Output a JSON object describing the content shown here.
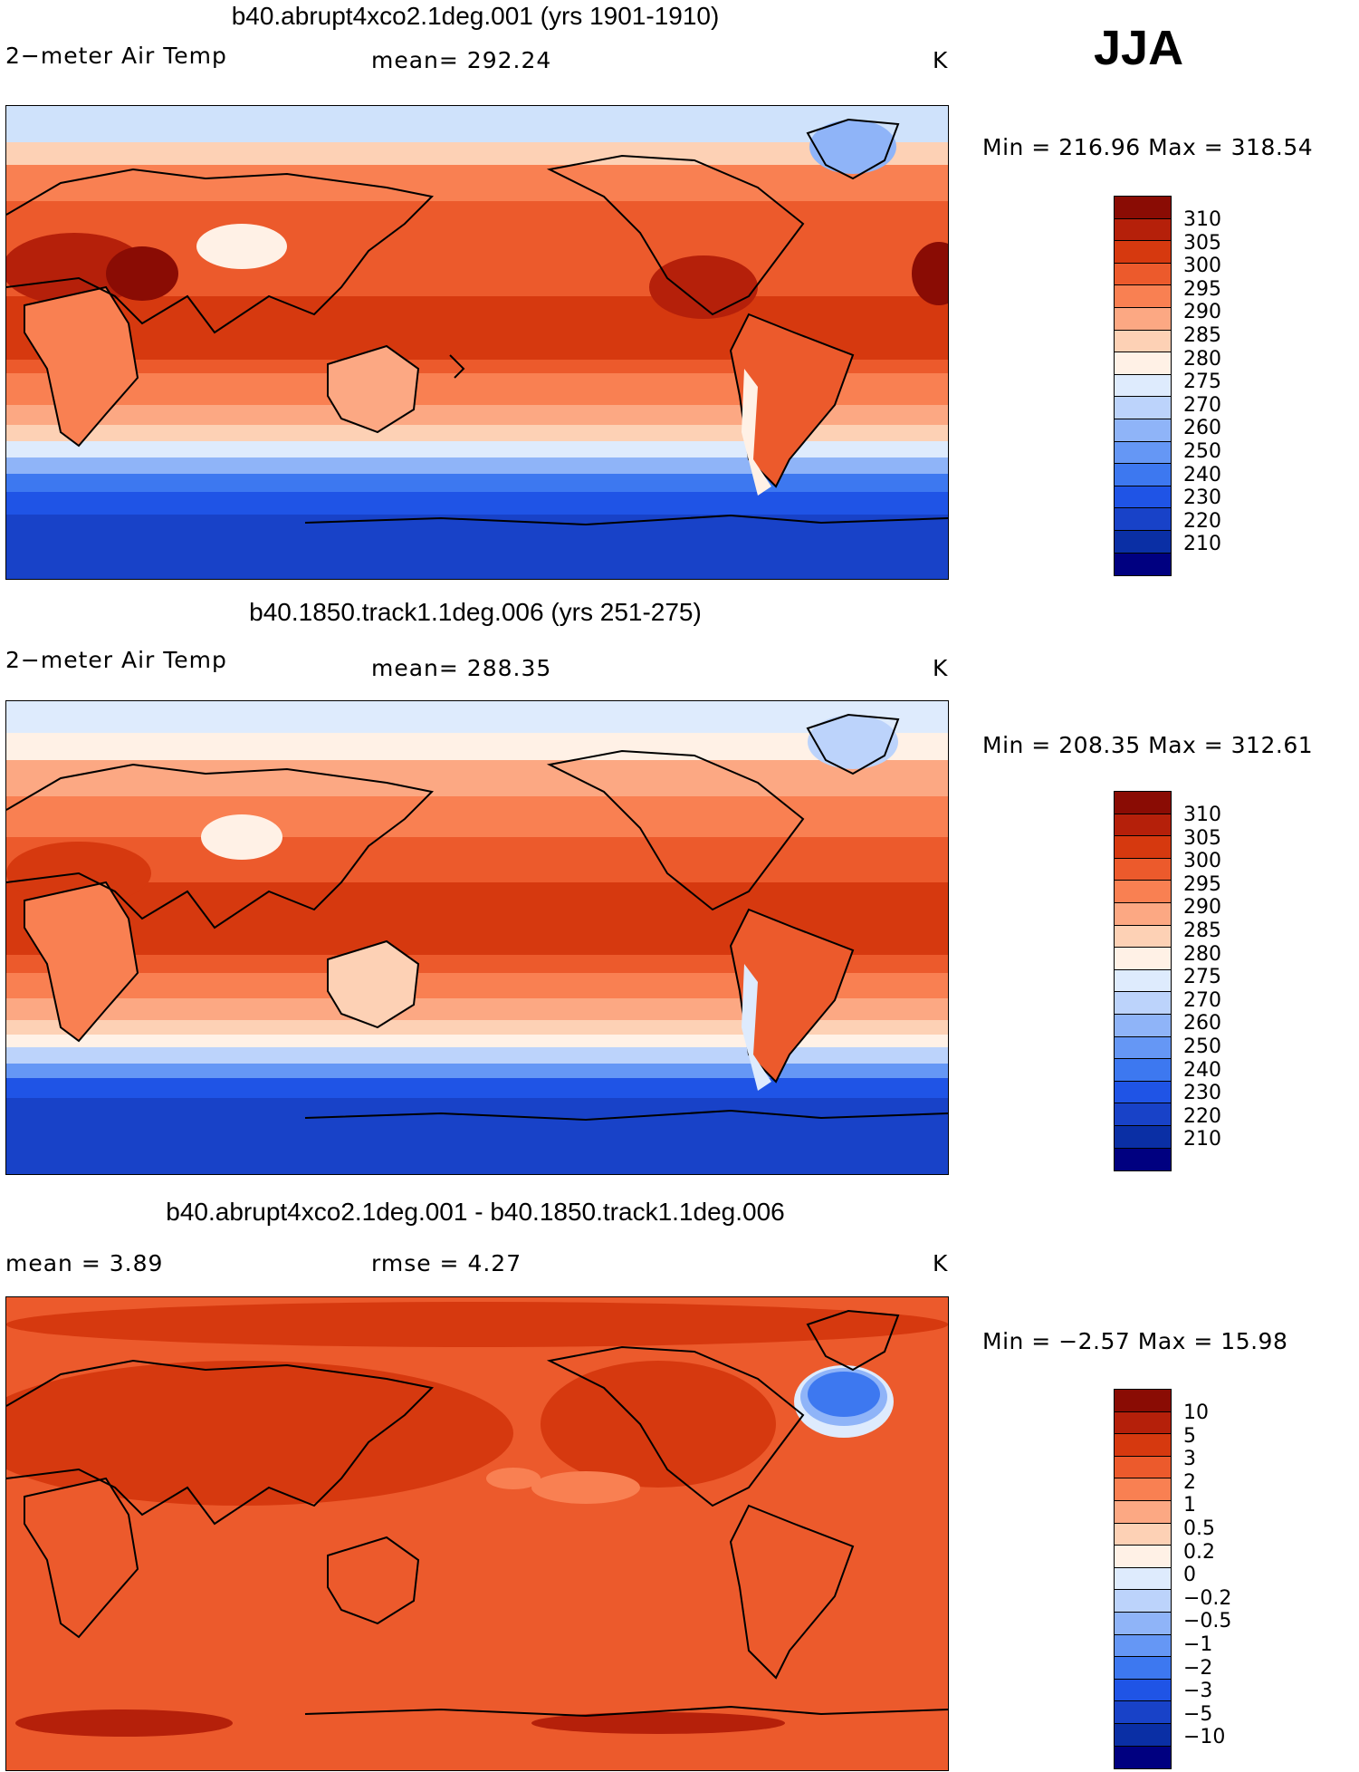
{
  "season": "JJA",
  "panels": [
    {
      "title": "b40.abrupt4xco2.1deg.001 (yrs 1901-1910)",
      "left_label": "2−meter Air Temp",
      "center_label": "mean= 292.24",
      "units": "K",
      "minmax": "Min = 216.96 Max = 318.54",
      "colorbar_labels": [
        "310",
        "305",
        "300",
        "295",
        "290",
        "285",
        "280",
        "275",
        "270",
        "260",
        "250",
        "240",
        "230",
        "220",
        "210"
      ]
    },
    {
      "title": "b40.1850.track1.1deg.006 (yrs 251-275)",
      "left_label": "2−meter Air Temp",
      "center_label": "mean= 288.35",
      "units": "K",
      "minmax": "Min = 208.35 Max = 312.61",
      "colorbar_labels": [
        "310",
        "305",
        "300",
        "295",
        "290",
        "285",
        "280",
        "275",
        "270",
        "260",
        "250",
        "240",
        "230",
        "220",
        "210"
      ]
    },
    {
      "title": "b40.abrupt4xco2.1deg.001 - b40.1850.track1.1deg.006",
      "left_label": "mean =    3.89",
      "center_label": "rmse =    4.27",
      "units": "K",
      "minmax": "Min =  −2.57 Max =   15.98",
      "colorbar_labels": [
        "10",
        "5",
        "3",
        "2",
        "1",
        "0.5",
        "0.2",
        "0",
        "−0.2",
        "−0.5",
        "−1",
        "−2",
        "−3",
        "−5",
        "−10"
      ]
    }
  ],
  "colors": {
    "abs_scale": [
      "#000080",
      "#0a2fa5",
      "#1842c8",
      "#1f54e6",
      "#3d78f0",
      "#6597f5",
      "#8fb4f8",
      "#bcd3fb",
      "#deebfd",
      "#fff1e6",
      "#fdd1b5",
      "#fca883",
      "#f98052",
      "#ec5a2c",
      "#d6390f",
      "#b5200a",
      "#8a0c04"
    ],
    "diff_scale": [
      "#000080",
      "#0a2fa5",
      "#1842c8",
      "#1f54e6",
      "#3d78f0",
      "#6597f5",
      "#8fb4f8",
      "#bcd3fb",
      "#deebfd",
      "#fff1e6",
      "#fdd1b5",
      "#fca883",
      "#f98052",
      "#ec5a2c",
      "#d6390f",
      "#b5200a",
      "#8a0c04"
    ]
  }
}
